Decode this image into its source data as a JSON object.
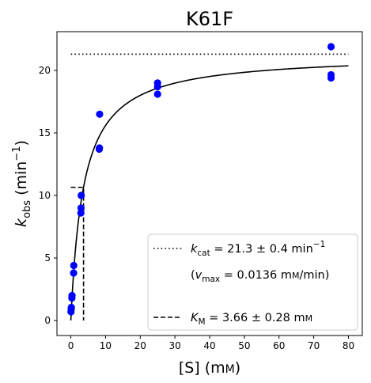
{
  "chart_data": {
    "type": "scatter",
    "title": "K61F",
    "xlabel": {
      "main": "[S] (m",
      "unit_sc": "M",
      "close": ")"
    },
    "ylabel": {
      "k": "k",
      "sub": "obs",
      "rest": " (min",
      "exp": "−1",
      "close": ")"
    },
    "xlim": [
      -4,
      84
    ],
    "ylim": [
      -1.2,
      23.1
    ],
    "xticks": [
      0,
      10,
      20,
      30,
      40,
      50,
      60,
      70,
      80
    ],
    "yticks": [
      0,
      5,
      10,
      15,
      20
    ],
    "grid": false,
    "legend_position": "lower-right",
    "colors": {
      "points": "#0000ff",
      "fit": "#000000"
    },
    "points": [
      {
        "x": 0.05,
        "y": 0.7
      },
      {
        "x": 0.1,
        "y": 0.9
      },
      {
        "x": 0.15,
        "y": 1.05
      },
      {
        "x": 0.3,
        "y": 1.8
      },
      {
        "x": 0.35,
        "y": 2.0
      },
      {
        "x": 0.8,
        "y": 3.8
      },
      {
        "x": 0.85,
        "y": 4.4
      },
      {
        "x": 2.9,
        "y": 8.6
      },
      {
        "x": 2.95,
        "y": 9.0
      },
      {
        "x": 3.0,
        "y": 10.0
      },
      {
        "x": 8.2,
        "y": 13.7
      },
      {
        "x": 8.25,
        "y": 13.8
      },
      {
        "x": 8.3,
        "y": 16.5
      },
      {
        "x": 25,
        "y": 18.1
      },
      {
        "x": 25,
        "y": 18.7
      },
      {
        "x": 25,
        "y": 19.0
      },
      {
        "x": 75,
        "y": 19.4
      },
      {
        "x": 75,
        "y": 19.65
      },
      {
        "x": 75,
        "y": 21.9
      }
    ],
    "fit": {
      "model": "michaelis-menten",
      "kcat": 21.3,
      "km": 3.66,
      "x_range": [
        0,
        80
      ]
    },
    "kcat_line": {
      "y": 21.3,
      "x_range": [
        0,
        80
      ]
    },
    "km_marker": {
      "x": 3.66,
      "y": 10.65,
      "x_start": 0
    },
    "legend": [
      {
        "style": "dotted",
        "label": "k",
        "sub": "cat",
        "text": " = 21.3 ± 0.4 min",
        "sup": "−1"
      },
      {
        "style": "none",
        "label": "(v",
        "sub": "max",
        "text": " = 0.0136 m",
        "sc": "M",
        "tail": "/min)"
      },
      {
        "style": "dashed",
        "label": "K",
        "sub": "M",
        "text": " = 3.66 ± 0.28 m",
        "sc": "M",
        "tail": ""
      }
    ]
  }
}
